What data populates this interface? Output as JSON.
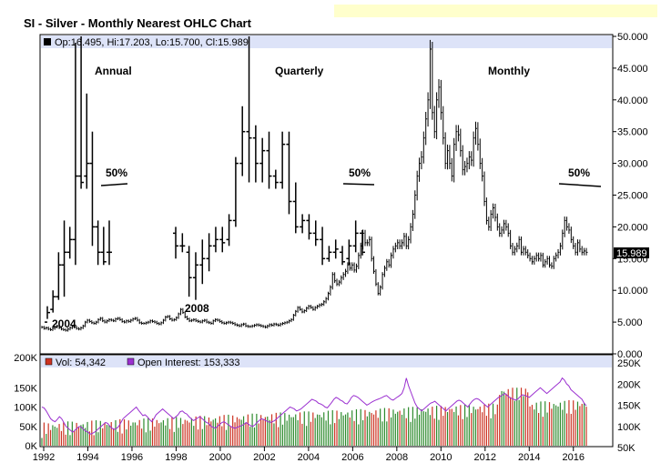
{
  "title": "SI - Silver - Monthly Nearest OHLC Chart",
  "price_legend": "Op:16.495, Hi:17.203, Lo:15.700, Cl:15.989",
  "last_price_tag": "15.989",
  "annotations": {
    "annual": "Annual",
    "quarterly": "Quarterly",
    "monthly": "Monthly",
    "pct1": "50%",
    "pct2": "50%",
    "pct3": "50%",
    "y2004": "2004",
    "y2008": "2008"
  },
  "volume_legend": {
    "vol_label": "Vol: 54,342",
    "oi_label": "Open Interest: 153,333"
  },
  "colors": {
    "plot_bg": "#ffffff",
    "legend_bg": "#dde3f8",
    "bars": "#000000",
    "volume_up": "#2e8b2e",
    "volume_down": "#cc3322",
    "open_interest": "#9b30d0",
    "tag_bg": "#000000"
  },
  "chart_data": {
    "type": "ohlc",
    "y_ticks": [
      "50.000",
      "45.000",
      "40.000",
      "35.000",
      "30.000",
      "25.000",
      "20.000",
      "15.000",
      "10.000",
      "5.000",
      "0.000"
    ],
    "ylim": [
      0,
      50
    ],
    "x_ticks": [
      "1992",
      "1994",
      "1996",
      "1998",
      "2000",
      "2002",
      "2004",
      "2006",
      "2008",
      "2010",
      "2012",
      "2014",
      "2016"
    ],
    "xlim": [
      1992,
      2017
    ],
    "annual_bars": [
      {
        "o": 5,
        "h": 7.5,
        "l": 5.5,
        "c": 6.5
      },
      {
        "o": 7,
        "h": 10,
        "l": 6.5,
        "c": 9
      },
      {
        "o": 9,
        "h": 16,
        "l": 8.5,
        "c": 14
      },
      {
        "o": 14,
        "h": 21,
        "l": 9,
        "c": 16
      },
      {
        "o": 16,
        "h": 20,
        "l": 15,
        "c": 18
      },
      {
        "o": 18,
        "h": 49,
        "l": 14,
        "c": 28
      },
      {
        "o": 28,
        "h": 50,
        "l": 26,
        "c": 27
      },
      {
        "o": 28,
        "h": 41,
        "l": 26,
        "c": 30
      },
      {
        "o": 30,
        "h": 35,
        "l": 17,
        "c": 20
      },
      {
        "o": 20,
        "h": 21,
        "l": 14,
        "c": 16
      },
      {
        "o": 16,
        "h": 20,
        "l": 14,
        "c": 14.5
      },
      {
        "o": 16,
        "h": 21,
        "l": 14,
        "c": 16
      }
    ],
    "quarterly_bars": [
      {
        "o": 19,
        "h": 20,
        "l": 15,
        "c": 17
      },
      {
        "o": 17,
        "h": 19,
        "l": 16,
        "c": 17
      },
      {
        "o": 16,
        "h": 17,
        "l": 9,
        "c": 12
      },
      {
        "o": 12,
        "h": 16,
        "l": 8.5,
        "c": 14
      },
      {
        "o": 14,
        "h": 18,
        "l": 11,
        "c": 15
      },
      {
        "o": 15,
        "h": 19,
        "l": 13,
        "c": 17
      },
      {
        "o": 17,
        "h": 20,
        "l": 16,
        "c": 18
      },
      {
        "o": 18,
        "h": 20,
        "l": 16,
        "c": 17.5
      },
      {
        "o": 18,
        "h": 22,
        "l": 17,
        "c": 21
      },
      {
        "o": 21,
        "h": 31,
        "l": 20,
        "c": 30
      },
      {
        "o": 30,
        "h": 39,
        "l": 28,
        "c": 35
      },
      {
        "o": 35,
        "h": 50,
        "l": 27,
        "c": 34
      },
      {
        "o": 34,
        "h": 36,
        "l": 27,
        "c": 30
      },
      {
        "o": 30,
        "h": 34,
        "l": 27,
        "c": 32
      },
      {
        "o": 32,
        "h": 35,
        "l": 26,
        "c": 28
      },
      {
        "o": 28,
        "h": 29,
        "l": 26,
        "c": 27
      },
      {
        "o": 27,
        "h": 35,
        "l": 26,
        "c": 33
      },
      {
        "o": 33,
        "h": 35,
        "l": 22,
        "c": 24
      },
      {
        "o": 24,
        "h": 27,
        "l": 19,
        "c": 20
      },
      {
        "o": 20,
        "h": 22,
        "l": 19,
        "c": 21
      },
      {
        "o": 21,
        "h": 22,
        "l": 18,
        "c": 19
      },
      {
        "o": 19,
        "h": 21,
        "l": 17,
        "c": 18
      },
      {
        "o": 18,
        "h": 20,
        "l": 14,
        "c": 15
      },
      {
        "o": 15,
        "h": 17,
        "l": 14.5,
        "c": 16
      },
      {
        "o": 16,
        "h": 18,
        "l": 15,
        "c": 16.5
      },
      {
        "o": 16,
        "h": 17,
        "l": 14,
        "c": 14.5
      },
      {
        "o": 15,
        "h": 18,
        "l": 14,
        "c": 17
      },
      {
        "o": 17,
        "h": 21,
        "l": 16,
        "c": 19
      },
      {
        "o": 19,
        "h": 19.5,
        "l": 15.5,
        "c": 16
      }
    ],
    "monthly_closes": [
      4.2,
      4.0,
      4.1,
      3.9,
      3.8,
      4.0,
      4.2,
      4.4,
      4.1,
      3.9,
      3.8,
      3.7,
      3.9,
      4.1,
      4.3,
      4.2,
      4.0,
      3.9,
      4.1,
      4.4,
      5.0,
      5.3,
      5.1,
      4.9,
      4.8,
      5.0,
      5.4,
      5.6,
      5.2,
      5.0,
      5.2,
      5.4,
      5.3,
      5.2,
      5.5,
      5.6,
      5.4,
      5.1,
      5.0,
      5.2,
      5.1,
      5.3,
      5.5,
      5.6,
      5.3,
      4.9,
      4.8,
      4.8,
      4.9,
      5.0,
      5.2,
      5.1,
      5.0,
      4.8,
      4.7,
      4.9,
      5.3,
      5.8,
      5.9,
      5.5,
      5.3,
      5.4,
      5.7,
      6.3,
      7.0,
      6.5,
      5.8,
      5.5,
      5.2,
      5.3,
      5.4,
      5.2,
      5.1,
      5.0,
      5.2,
      5.3,
      5.0,
      4.9,
      4.8,
      5.2,
      5.4,
      5.3,
      5.1,
      4.9,
      4.8,
      4.9,
      5.0,
      4.9,
      4.8,
      4.6,
      4.5,
      4.4,
      4.6,
      4.7,
      4.4,
      4.3,
      4.3,
      4.4,
      4.5,
      4.6,
      4.5,
      4.4,
      4.3,
      4.2,
      4.4,
      4.6,
      4.5,
      4.7,
      4.6,
      4.5,
      4.7,
      4.8,
      4.9,
      5.0,
      5.2,
      5.4,
      6.1,
      6.7,
      7.3,
      7.0,
      6.6,
      6.8,
      7.2,
      7.5,
      7.3,
      7.0,
      7.3,
      7.5,
      7.7,
      7.8,
      8.2,
      8.7,
      9.5,
      10.5,
      12.5,
      11.5,
      11.0,
      11.3,
      12.0,
      12.5,
      13.0,
      14.0,
      13.5,
      14.0,
      13.2,
      13.8,
      15.5,
      17.0,
      19.0,
      17.5,
      17.5,
      18.0,
      15.0,
      13.0,
      11.0,
      9.5,
      10.5,
      12.5,
      13.5,
      14.5,
      14.0,
      15.5,
      16.5,
      17.0,
      17.5,
      17.0,
      17.5,
      18.5,
      17.0,
      18.0,
      20.0,
      22.0,
      25.0,
      28.0,
      30.0,
      31.0,
      34.0,
      37.0,
      40.0,
      48.0,
      38.0,
      35.0,
      40.0,
      42.0,
      38.0,
      34.0,
      30.0,
      32.0,
      30.0,
      28.0,
      33.0,
      35.0,
      34.5,
      32.0,
      29.0,
      29.5,
      30.0,
      31.0,
      30.5,
      34.0,
      35.5,
      33.0,
      30.0,
      28.0,
      24.0,
      21.0,
      20.0,
      22.0,
      23.0,
      21.5,
      20.0,
      19.0,
      19.5,
      20.5,
      20.0,
      19.0,
      17.0,
      16.0,
      16.5,
      17.0,
      18.0,
      16.0,
      16.5,
      16.0,
      15.5,
      15.0,
      14.5,
      15.0,
      15.5,
      15.0,
      15.5,
      14.0,
      14.5,
      15.0,
      14.0,
      13.8,
      15.0,
      15.5,
      16.0,
      17.0,
      19.0,
      21.0,
      20.0,
      19.5,
      18.0,
      17.0,
      16.0,
      17.5,
      16.5,
      16.0,
      16.2,
      15.989
    ],
    "volume_axis_ticks": [
      "200K",
      "150K",
      "100K",
      "50K",
      "0K"
    ],
    "oi_axis_ticks": [
      "250K",
      "200K",
      "150K",
      "100K",
      "50K"
    ],
    "volume_ylim": [
      0,
      200000
    ],
    "oi_ylim": [
      50000,
      250000
    ],
    "open_interest_series": [
      150000,
      148000,
      140000,
      130000,
      120000,
      115000,
      112000,
      118000,
      125000,
      120000,
      110000,
      100000,
      95000,
      90000,
      85000,
      90000,
      95000,
      100000,
      98000,
      92000,
      88000,
      85000,
      80000,
      82000,
      85000,
      90000,
      95000,
      100000,
      105000,
      110000,
      108000,
      100000,
      95000,
      92000,
      95000,
      100000,
      110000,
      120000,
      125000,
      130000,
      135000,
      140000,
      145000,
      150000,
      142000,
      135000,
      128000,
      130000,
      125000,
      118000,
      112000,
      120000,
      130000,
      135000,
      140000,
      145000,
      140000,
      135000,
      130000,
      125000,
      120000,
      125000,
      130000,
      138000,
      140000,
      135000,
      132000,
      125000,
      120000,
      115000,
      118000,
      122000,
      125000,
      120000,
      115000,
      110000,
      108000,
      100000,
      98000,
      95000,
      100000,
      105000,
      110000,
      112000,
      108000,
      104000,
      100000,
      97000,
      95000,
      98000,
      100000,
      102000,
      105000,
      110000,
      106000,
      102000,
      100000,
      104000,
      110000,
      115000,
      120000,
      118000,
      115000,
      112000,
      110000,
      112000,
      115000,
      120000,
      125000,
      130000,
      135000,
      140000,
      145000,
      150000,
      148000,
      145000,
      140000,
      142000,
      145000,
      150000,
      155000,
      160000,
      165000,
      170000,
      168000,
      165000,
      160000,
      158000,
      155000,
      150000,
      148000,
      155000,
      162000,
      170000,
      175000,
      172000,
      168000,
      165000,
      160000,
      158000,
      165000,
      175000,
      180000,
      178000,
      175000,
      170000,
      165000,
      160000,
      155000,
      158000,
      162000,
      165000,
      168000,
      170000,
      172000,
      175000,
      178000,
      180000,
      175000,
      170000,
      168000,
      172000,
      176000,
      180000,
      185000,
      200000,
      225000,
      205000,
      190000,
      175000,
      160000,
      150000,
      145000,
      140000,
      145000,
      150000,
      155000,
      160000,
      162000,
      165000,
      160000,
      155000,
      150000,
      145000,
      140000,
      145000,
      150000,
      155000,
      160000,
      165000,
      168000,
      165000,
      160000,
      155000,
      150000,
      158000,
      165000,
      170000,
      172000,
      170000,
      165000,
      160000,
      155000,
      150000,
      155000,
      160000,
      165000,
      170000,
      175000,
      178000,
      182000,
      185000,
      180000,
      175000,
      172000,
      170000,
      168000,
      172000,
      178000,
      182000,
      180000,
      178000,
      175000,
      180000,
      185000,
      190000,
      195000,
      200000,
      195000,
      190000,
      185000,
      190000,
      195000,
      200000,
      205000,
      210000,
      215000,
      225000,
      220000,
      210000,
      205000,
      195000,
      190000,
      185000,
      180000,
      175000,
      170000,
      160000,
      153333
    ]
  }
}
